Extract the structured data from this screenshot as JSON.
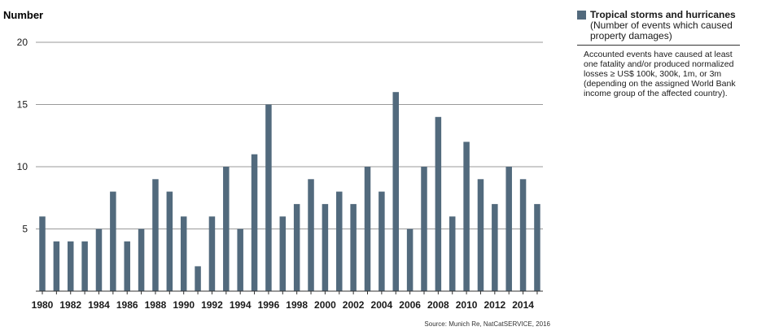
{
  "chart_data": {
    "type": "bar",
    "ylabel": "Number",
    "ylim": [
      0,
      20
    ],
    "yticks": [
      5,
      10,
      15,
      20
    ],
    "grid": true,
    "categories": [
      1980,
      1981,
      1982,
      1983,
      1984,
      1985,
      1986,
      1987,
      1988,
      1989,
      1990,
      1991,
      1992,
      1993,
      1994,
      1995,
      1996,
      1997,
      1998,
      1999,
      2000,
      2001,
      2002,
      2003,
      2004,
      2005,
      2006,
      2007,
      2008,
      2009,
      2010,
      2011,
      2012,
      2013,
      2014,
      2015
    ],
    "xtick_labels": [
      "1980",
      "1982",
      "1984",
      "1986",
      "1988",
      "1990",
      "1992",
      "1994",
      "1996",
      "1998",
      "2000",
      "2002",
      "2004",
      "2006",
      "2008",
      "2010",
      "2012",
      "2014"
    ],
    "series": [
      {
        "name": "Tropical storms and hurricanes",
        "color": "#526a7d",
        "values": [
          6,
          4,
          4,
          4,
          5,
          8,
          4,
          5,
          9,
          8,
          6,
          2,
          6,
          10,
          5,
          11,
          15,
          6,
          7,
          9,
          7,
          8,
          7,
          10,
          8,
          16,
          5,
          10,
          14,
          6,
          12,
          9,
          7,
          10,
          9,
          7
        ]
      }
    ],
    "legend": {
      "series_label": "Tropical storms and hurricanes",
      "subtitle": "(Number of events which caused property damages)",
      "note": "Accounted events have caused at least one fatality and/or produced normalized losses ≥ US$ 100k, 300k, 1m, or 3m (depending on the assigned World Bank income group of the affected country).",
      "placement": "top-right"
    },
    "source": "Source: Munich Re, NatCatSERVICE, 2016"
  }
}
